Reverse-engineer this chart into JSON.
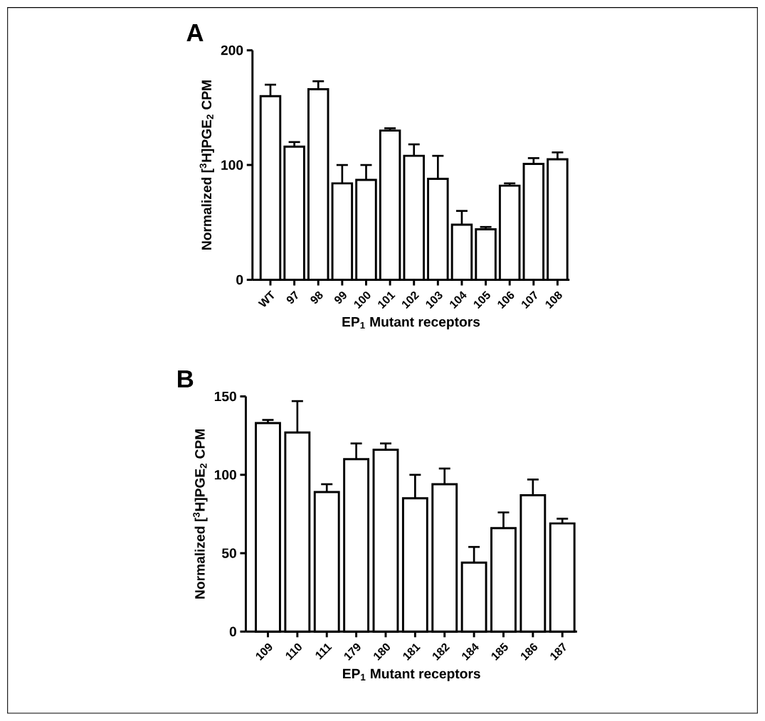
{
  "chart_data": [
    {
      "type": "bar",
      "title": "A",
      "xlabel": "EP$_{1}$ Mutant receptors",
      "ylabel": "Normalized [$^{3}$H]PGE$_{2}$ CPM",
      "categories": [
        "WT",
        "97",
        "98",
        "99",
        "100",
        "101",
        "102",
        "103",
        "104",
        "105",
        "106",
        "107",
        "108"
      ],
      "values": [
        160,
        116,
        166,
        84,
        87,
        130,
        108,
        88,
        48,
        44,
        82,
        101,
        105
      ],
      "errors": [
        [
          160,
          170
        ],
        [
          116,
          120
        ],
        [
          166,
          173
        ],
        [
          84,
          100
        ],
        [
          87,
          100
        ],
        [
          130,
          132
        ],
        [
          108,
          118
        ],
        [
          88,
          108
        ],
        [
          48,
          60
        ],
        [
          44,
          46
        ],
        [
          82,
          84
        ],
        [
          101,
          106
        ],
        [
          105,
          111
        ]
      ],
      "color": "#000000",
      "ylim": [
        0,
        200
      ],
      "yticks": [
        0,
        100,
        200
      ]
    },
    {
      "type": "bar",
      "title": "B",
      "xlabel": "EP$_{1}$ Mutant receptors",
      "ylabel": "Normalized [$^{3}$H]PGE$_{2}$ CPM",
      "categories": [
        "109",
        "110",
        "111",
        "179",
        "180",
        "181",
        "182",
        "184",
        "185",
        "186",
        "187"
      ],
      "values": [
        133,
        127,
        89,
        110,
        116,
        85,
        94,
        44,
        66,
        87,
        69
      ],
      "errors": [
        [
          133,
          135
        ],
        [
          127,
          147
        ],
        [
          89,
          94
        ],
        [
          110,
          120
        ],
        [
          116,
          120
        ],
        [
          85,
          100
        ],
        [
          94,
          104
        ],
        [
          44,
          54
        ],
        [
          66,
          76
        ],
        [
          87,
          97
        ],
        [
          69,
          72
        ]
      ],
      "color": "#000000",
      "ylim": [
        0,
        150
      ],
      "yticks": [
        0,
        50,
        100,
        150
      ]
    }
  ]
}
